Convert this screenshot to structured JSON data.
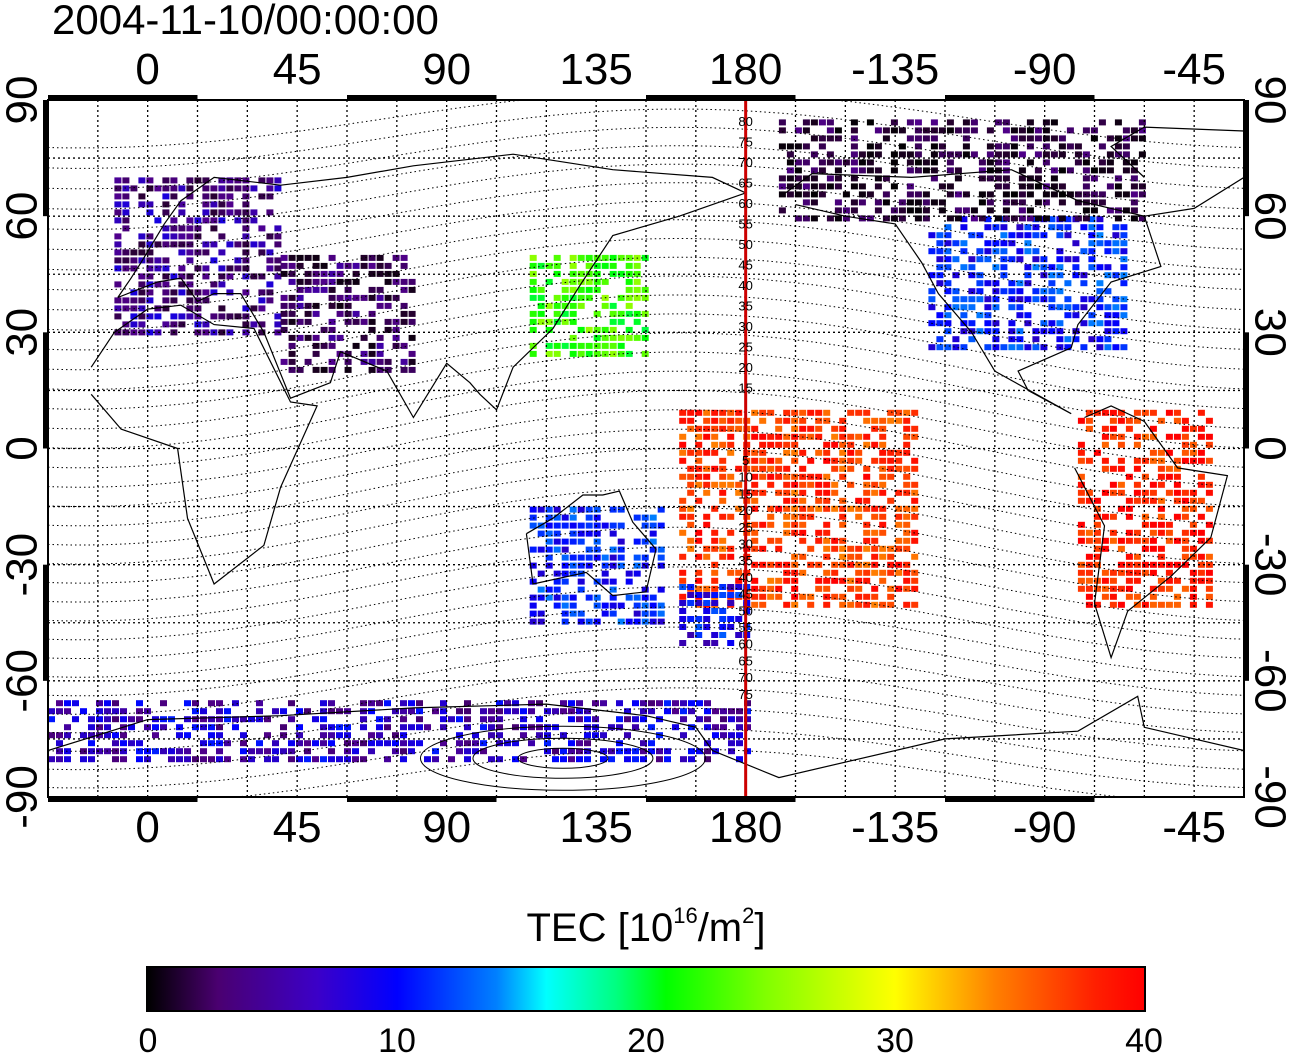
{
  "timestamp": "2004-11-10/00:00:00",
  "map": {
    "projection": "equirectangular",
    "lon_range": [
      -30,
      330
    ],
    "lat_range": [
      -90,
      90
    ],
    "top_lon_ticks": [
      "0",
      "45",
      "90",
      "135",
      "180",
      "-135",
      "-90",
      "-45"
    ],
    "bottom_lon_ticks": [
      "0",
      "45",
      "90",
      "135",
      "180",
      "-135",
      "-90",
      "-45"
    ],
    "left_lat_ticks": [
      "90",
      "60",
      "30",
      "0",
      "-30",
      "-60",
      "-90"
    ],
    "right_lat_ticks": [
      "90",
      "60",
      "30",
      "0",
      "-30",
      "-60",
      "-90"
    ],
    "grid": "dotted, 15 degree spacing",
    "meridian_line_color": "#cc0000",
    "magnetic_lat_labels_north": [
      "80",
      "75",
      "70",
      "65",
      "60",
      "55",
      "50",
      "45",
      "40",
      "35",
      "30",
      "25",
      "20",
      "15"
    ],
    "magnetic_lat_labels_south": [
      "5",
      "10",
      "15",
      "20",
      "25",
      "30",
      "35",
      "40",
      "45",
      "50",
      "55",
      "60",
      "65",
      "70",
      "75"
    ]
  },
  "colorbar": {
    "title": "TEC  [10",
    "exponent": "16",
    "unit_mid": "/m",
    "unit_exp": "2",
    "unit_end": "]",
    "range": [
      0,
      40
    ],
    "ticks": [
      "0",
      "10",
      "20",
      "30",
      "40"
    ],
    "colors": [
      "#000000",
      "#4a0070",
      "#0000ff",
      "#00ffff",
      "#00ff00",
      "#ffff00",
      "#ff8000",
      "#ff0000"
    ]
  },
  "chart_data": {
    "type": "heatmap",
    "title": "2004-11-10/00:00:00",
    "xlabel": "",
    "ylabel": "",
    "xlim": [
      -30,
      330
    ],
    "ylim": [
      -90,
      90
    ],
    "value_range": [
      0,
      40
    ],
    "regions": [
      {
        "lon": [
          -10,
          40
        ],
        "lat": [
          30,
          70
        ],
        "tec": 6
      },
      {
        "lon": [
          40,
          80
        ],
        "lat": [
          20,
          50
        ],
        "tec": 4
      },
      {
        "lon": [
          115,
          150
        ],
        "lat": [
          25,
          50
        ],
        "tec": 23
      },
      {
        "lon": [
          235,
          295
        ],
        "lat": [
          25,
          60
        ],
        "tec": 11
      },
      {
        "lon": [
          190,
          300
        ],
        "lat": [
          60,
          85
        ],
        "tec": 3
      },
      {
        "lon": [
          160,
          230
        ],
        "lat": [
          -40,
          10
        ],
        "tec": 37
      },
      {
        "lon": [
          280,
          320
        ],
        "lat": [
          -40,
          10
        ],
        "tec": 38
      },
      {
        "lon": [
          115,
          155
        ],
        "lat": [
          -45,
          -15
        ],
        "tec": 11
      },
      {
        "lon": [
          160,
          180
        ],
        "lat": [
          -50,
          -35
        ],
        "tec": 10
      },
      {
        "lon": [
          -30,
          180
        ],
        "lat": [
          -80,
          -65
        ],
        "tec": 8
      }
    ]
  }
}
